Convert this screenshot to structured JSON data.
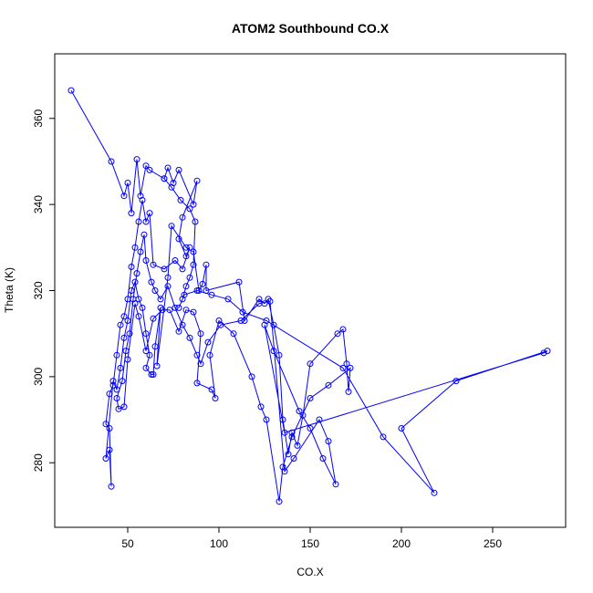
{
  "chart_data": {
    "type": "line",
    "title": "ATOM2 Southbound CO.X",
    "xlabel": "CO.X",
    "ylabel": "Theta (K)",
    "xlim": [
      10,
      290
    ],
    "ylim": [
      265,
      375
    ],
    "xticks": [
      50,
      100,
      150,
      200,
      250
    ],
    "yticks": [
      280,
      300,
      320,
      340,
      360
    ],
    "grid": false,
    "color": "#0000ff",
    "points": [
      [
        19,
        366.5
      ],
      [
        41,
        350
      ],
      [
        48,
        342
      ],
      [
        50,
        345
      ],
      [
        52,
        338
      ],
      [
        55,
        350.5
      ],
      [
        57,
        342
      ],
      [
        60,
        349
      ],
      [
        62,
        348
      ],
      [
        70,
        346
      ],
      [
        72,
        348.5
      ],
      [
        75,
        345
      ],
      [
        78,
        348
      ],
      [
        86,
        340
      ],
      [
        88,
        345.5
      ],
      [
        80,
        337
      ],
      [
        78,
        332
      ],
      [
        82,
        328
      ],
      [
        84,
        330
      ],
      [
        80,
        325
      ],
      [
        76,
        327
      ],
      [
        70,
        325
      ],
      [
        64,
        326
      ],
      [
        62,
        338
      ],
      [
        60,
        336
      ],
      [
        58,
        341
      ],
      [
        56,
        336
      ],
      [
        54,
        330
      ],
      [
        52,
        325.5
      ],
      [
        50,
        318
      ],
      [
        48,
        314
      ],
      [
        46,
        312
      ],
      [
        44,
        305
      ],
      [
        42,
        298
      ],
      [
        40,
        296
      ],
      [
        38,
        289
      ],
      [
        40,
        288
      ],
      [
        41,
        274.5
      ],
      [
        40,
        283
      ],
      [
        38,
        281
      ],
      [
        42,
        299
      ],
      [
        44,
        297
      ],
      [
        46,
        302
      ],
      [
        48,
        309
      ],
      [
        50,
        313
      ],
      [
        52,
        320
      ],
      [
        54,
        322
      ],
      [
        56,
        318
      ],
      [
        58,
        316
      ],
      [
        60,
        310
      ],
      [
        62,
        305
      ],
      [
        60,
        302
      ],
      [
        63,
        300.5
      ],
      [
        64,
        300.5
      ],
      [
        65,
        307
      ],
      [
        68,
        316
      ],
      [
        66,
        302.5
      ],
      [
        72,
        323
      ],
      [
        74,
        335
      ],
      [
        82,
        330
      ],
      [
        86,
        329
      ],
      [
        89,
        320
      ],
      [
        91,
        321.5
      ],
      [
        93,
        326
      ],
      [
        93,
        320
      ],
      [
        111,
        322
      ],
      [
        114,
        313
      ],
      [
        122,
        318
      ],
      [
        125,
        317
      ],
      [
        127,
        318
      ],
      [
        130,
        312
      ],
      [
        133,
        305
      ],
      [
        135,
        290
      ],
      [
        138,
        282
      ],
      [
        140,
        287
      ],
      [
        143,
        284
      ],
      [
        146,
        291
      ],
      [
        150,
        303
      ],
      [
        165,
        310
      ],
      [
        168,
        311
      ],
      [
        170,
        303
      ],
      [
        171,
        296.5
      ],
      [
        172,
        302
      ],
      [
        160,
        298
      ],
      [
        150,
        295
      ],
      [
        140,
        286
      ],
      [
        135,
        279
      ],
      [
        133,
        271
      ],
      [
        126,
        290
      ],
      [
        123,
        293
      ],
      [
        118,
        300
      ],
      [
        108,
        310
      ],
      [
        100,
        313
      ],
      [
        95,
        305
      ],
      [
        98,
        295
      ],
      [
        96,
        297
      ],
      [
        88,
        298.5
      ],
      [
        90,
        310
      ],
      [
        86,
        315
      ],
      [
        82,
        315.5
      ],
      [
        78,
        310.5
      ],
      [
        73,
        315.5
      ],
      [
        69,
        315.5
      ],
      [
        64,
        313.5
      ],
      [
        60,
        306
      ],
      [
        56,
        314
      ],
      [
        54,
        317
      ],
      [
        50,
        304
      ],
      [
        48,
        293
      ],
      [
        45,
        292.5
      ],
      [
        44,
        295
      ],
      [
        47,
        299
      ],
      [
        49,
        306
      ],
      [
        51,
        310
      ],
      [
        53,
        318
      ],
      [
        55,
        324
      ],
      [
        57,
        329
      ],
      [
        59,
        333
      ],
      [
        60,
        327
      ],
      [
        63,
        322
      ],
      [
        65,
        320
      ],
      [
        68,
        318
      ],
      [
        72,
        321
      ],
      [
        76,
        316
      ],
      [
        80,
        312
      ],
      [
        84,
        309
      ],
      [
        88,
        305
      ],
      [
        90,
        303
      ],
      [
        94,
        308
      ],
      [
        101,
        312
      ],
      [
        112,
        313
      ],
      [
        122,
        317
      ],
      [
        128,
        317.5
      ],
      [
        136,
        278
      ],
      [
        141,
        281
      ],
      [
        155,
        290
      ],
      [
        160,
        285
      ],
      [
        164,
        275
      ],
      [
        157,
        281
      ],
      [
        150,
        288
      ],
      [
        144,
        292
      ],
      [
        130,
        306
      ],
      [
        125,
        312
      ],
      [
        136,
        287
      ],
      [
        278,
        305.5
      ],
      [
        280,
        306
      ],
      [
        230,
        299
      ],
      [
        200,
        288
      ],
      [
        218,
        273
      ],
      [
        190,
        286
      ],
      [
        168,
        302
      ],
      [
        126,
        313
      ],
      [
        113,
        315
      ],
      [
        105,
        318
      ],
      [
        96,
        319
      ],
      [
        88,
        320
      ],
      [
        81,
        319
      ],
      [
        78,
        316
      ],
      [
        80,
        318
      ],
      [
        82,
        321
      ],
      [
        84,
        323
      ],
      [
        86,
        326
      ],
      [
        87,
        336
      ],
      [
        84,
        339
      ],
      [
        79,
        341
      ],
      [
        74,
        344
      ],
      [
        70,
        346
      ]
    ]
  }
}
